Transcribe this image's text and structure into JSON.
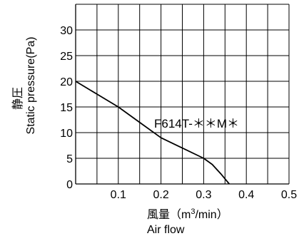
{
  "chart_data": {
    "type": "line",
    "xlabel_jp": "風量（m",
    "xlabel_sup": "3",
    "xlabel_unit_tail": "/min）",
    "xlabel_en": "Air flow",
    "ylabel_jp": "静圧",
    "ylabel_en": "Static pressure(Pa)",
    "xlim": [
      0,
      0.5
    ],
    "ylim": [
      0,
      35
    ],
    "x_ticks": [
      {
        "value": 0.1,
        "label": "0.1"
      },
      {
        "value": 0.2,
        "label": "0.2"
      },
      {
        "value": 0.3,
        "label": "0.3"
      },
      {
        "value": 0.4,
        "label": "0.4"
      },
      {
        "value": 0.5,
        "label": "0.5"
      }
    ],
    "y_ticks": [
      {
        "value": 0,
        "label": "0"
      },
      {
        "value": 5,
        "label": "5"
      },
      {
        "value": 10,
        "label": "10"
      },
      {
        "value": 15,
        "label": "15"
      },
      {
        "value": 20,
        "label": "20"
      },
      {
        "value": 25,
        "label": "25"
      },
      {
        "value": 30,
        "label": "30"
      }
    ],
    "grid": true,
    "series": [
      {
        "name": "F614T-＊＊M＊",
        "x": [
          0,
          0.05,
          0.1,
          0.15,
          0.2,
          0.25,
          0.3,
          0.32,
          0.34,
          0.36
        ],
        "y": [
          20,
          17.5,
          15,
          12,
          9,
          7,
          5,
          3.8,
          2,
          0
        ]
      }
    ]
  }
}
